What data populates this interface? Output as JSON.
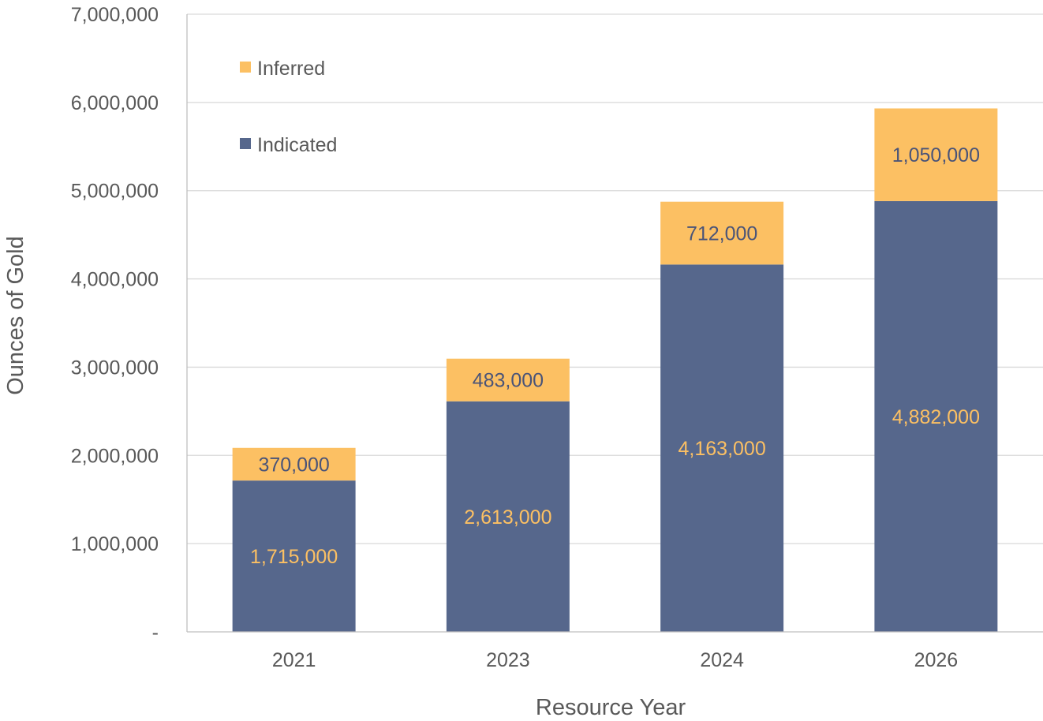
{
  "chart_data": {
    "type": "bar",
    "stacked": true,
    "categories": [
      "2021",
      "2023",
      "2024",
      "2026"
    ],
    "series": [
      {
        "name": "Indicated",
        "values": [
          1715000,
          2613000,
          4163000,
          4882000
        ],
        "color": "#56678C",
        "label_color": "#FCC063"
      },
      {
        "name": "Inferred",
        "values": [
          370000,
          483000,
          712000,
          1050000
        ],
        "color": "#FCC063",
        "label_color": "#4A5478"
      }
    ],
    "data_labels": {
      "Indicated": [
        "1,715,000",
        "2,613,000",
        "4,163,000",
        "4,882,000"
      ],
      "Inferred": [
        "370,000",
        "483,000",
        "712,000",
        "1,050,000"
      ]
    },
    "xlabel": "Resource Year",
    "ylabel": "Ounces of Gold",
    "ylim": [
      0,
      7000000
    ],
    "yticks": [
      0,
      1000000,
      2000000,
      3000000,
      4000000,
      5000000,
      6000000,
      7000000
    ],
    "ytick_labels": [
      "-",
      "1,000,000",
      "2,000,000",
      "3,000,000",
      "4,000,000",
      "5,000,000",
      "6,000,000",
      "7,000,000"
    ],
    "legend": {
      "placement": "top-left",
      "order": [
        "Inferred",
        "Indicated"
      ]
    },
    "grid": true
  }
}
